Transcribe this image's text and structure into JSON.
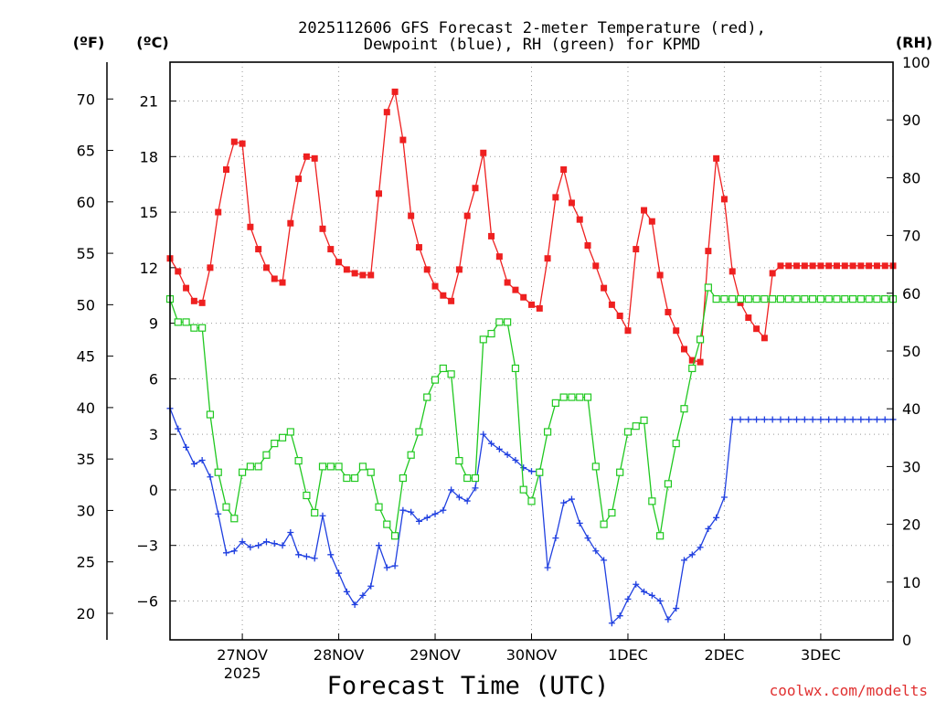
{
  "chart_data": {
    "type": "line",
    "title_line1": "2025112606 GFS Forecast 2-meter Temperature (red),",
    "title_line2": "Dewpoint (blue), RH (green) for KPMD",
    "xlabel": "Forecast Time (UTC)",
    "credit": "coolwx.com/modelts",
    "units": {
      "f": "(ºF)",
      "c": "(ºC)",
      "rh": "(RH)"
    },
    "colors": {
      "temperature": "#ee2020",
      "dewpoint": "#2040e0",
      "rh": "#20c820",
      "grid": "#999999",
      "credit": "#e03030"
    },
    "x_range_hours": [
      0,
      90
    ],
    "c_range": [
      -8.1,
      23.1
    ],
    "f_range": [
      17.42,
      73.58
    ],
    "rh_range": [
      0,
      100
    ],
    "c_ticks": [
      "-6",
      "-3",
      "0",
      "3",
      "6",
      "9",
      "12",
      "15",
      "18",
      "21"
    ],
    "f_ticks": [
      "20",
      "25",
      "30",
      "35",
      "40",
      "45",
      "50",
      "55",
      "60",
      "65",
      "70"
    ],
    "rh_ticks": [
      "0",
      "10",
      "20",
      "30",
      "40",
      "50",
      "60",
      "70",
      "80",
      "90",
      "100"
    ],
    "x_ticks": [
      {
        "hour": 9,
        "label": "27NOV",
        "sub": "2025"
      },
      {
        "hour": 21,
        "label": "28NOV",
        "sub": ""
      },
      {
        "hour": 33,
        "label": "29NOV",
        "sub": ""
      },
      {
        "hour": 45,
        "label": "30NOV",
        "sub": ""
      },
      {
        "hour": 57,
        "label": "1DEC",
        "sub": ""
      },
      {
        "hour": 69,
        "label": "2DEC",
        "sub": ""
      },
      {
        "hour": 81,
        "label": "3DEC",
        "sub": ""
      }
    ],
    "x_hours": [
      0,
      1,
      2,
      3,
      4,
      5,
      6,
      7,
      8,
      9,
      10,
      11,
      12,
      13,
      14,
      15,
      16,
      17,
      18,
      19,
      20,
      21,
      22,
      23,
      24,
      25,
      26,
      27,
      28,
      29,
      30,
      31,
      32,
      33,
      34,
      35,
      36,
      37,
      38,
      39,
      40,
      41,
      42,
      43,
      44,
      45,
      46,
      47,
      48,
      49,
      50,
      51,
      52,
      53,
      54,
      55,
      56,
      57,
      58,
      59,
      60,
      61,
      62,
      63,
      64,
      65,
      66,
      67,
      68,
      69,
      70,
      71,
      72,
      73,
      74,
      75,
      76,
      77,
      78,
      79,
      80,
      81,
      82,
      83,
      84,
      85,
      86,
      87,
      88,
      89,
      90
    ],
    "series": [
      {
        "name": "Temperature (°C)",
        "color": "#ee2020",
        "marker": "square-filled",
        "values": [
          12.5,
          11.8,
          10.9,
          10.2,
          10.1,
          12.0,
          15.0,
          17.3,
          18.8,
          18.7,
          14.2,
          13.0,
          12.0,
          11.4,
          11.2,
          14.4,
          16.8,
          18.0,
          17.9,
          14.1,
          13.0,
          12.3,
          11.9,
          11.7,
          11.6,
          11.6,
          16.0,
          20.4,
          21.5,
          18.9,
          14.8,
          13.1,
          11.9,
          11.0,
          10.5,
          10.2,
          11.9,
          14.8,
          16.3,
          18.2,
          13.7,
          12.6,
          11.2,
          10.8,
          10.4,
          10.0,
          9.8,
          12.5,
          15.8,
          17.3,
          15.5,
          14.6,
          13.2,
          12.1,
          10.9,
          10.0,
          9.4,
          8.6,
          13.0,
          15.1,
          14.5,
          11.6,
          9.6,
          8.6,
          7.6,
          7.0,
          6.9,
          12.9,
          17.9,
          15.7,
          11.8,
          10.1,
          9.3,
          8.7,
          8.2,
          11.7,
          12.1,
          12.1,
          12.1,
          12.1,
          12.1,
          12.1,
          12.1,
          12.1,
          12.1,
          12.1,
          12.1,
          12.1,
          12.1,
          12.1,
          12.1
        ]
      },
      {
        "name": "Dewpoint (°C)",
        "color": "#2040e0",
        "marker": "plus",
        "values": [
          4.4,
          3.3,
          2.3,
          1.4,
          1.6,
          0.7,
          -1.3,
          -3.4,
          -3.3,
          -2.8,
          -3.1,
          -3.0,
          -2.8,
          -2.9,
          -3.0,
          -2.3,
          -3.5,
          -3.6,
          -3.7,
          -1.4,
          -3.5,
          -4.5,
          -5.5,
          -6.2,
          -5.7,
          -5.2,
          -3.0,
          -4.2,
          -4.1,
          -1.1,
          -1.2,
          -1.7,
          -1.5,
          -1.3,
          -1.1,
          0.0,
          -0.4,
          -0.6,
          0.1,
          3.0,
          2.5,
          2.2,
          1.9,
          1.6,
          1.2,
          1.0,
          1.0,
          -4.2,
          -2.6,
          -0.7,
          -0.5,
          -1.8,
          -2.6,
          -3.3,
          -3.8,
          -7.2,
          -6.8,
          -5.9,
          -5.1,
          -5.5,
          -5.7,
          -6.0,
          -7.0,
          -6.4,
          -3.8,
          -3.5,
          -3.1,
          -2.1,
          -1.5,
          -0.4,
          3.8,
          3.8,
          3.8,
          3.8,
          3.8,
          3.8,
          3.8,
          3.8,
          3.8,
          3.8,
          3.8,
          3.8,
          3.8,
          3.8,
          3.8,
          3.8,
          3.8,
          3.8,
          3.8,
          3.8,
          3.8
        ]
      },
      {
        "name": "RH (%)",
        "color": "#20c820",
        "marker": "square-open",
        "values": [
          59,
          55,
          55,
          54,
          54,
          39,
          29,
          23,
          21,
          29,
          30,
          30,
          32,
          34,
          35,
          36,
          31,
          25,
          22,
          30,
          30,
          30,
          28,
          28,
          30,
          29,
          23,
          20,
          18,
          28,
          32,
          36,
          42,
          45,
          47,
          46,
          31,
          28,
          28,
          52,
          53,
          55,
          55,
          47,
          26,
          24,
          29,
          36,
          41,
          42,
          42,
          42,
          42,
          30,
          20,
          22,
          29,
          36,
          37,
          38,
          24,
          18,
          27,
          34,
          40,
          47,
          52,
          61,
          59,
          59,
          59,
          59,
          59,
          59,
          59,
          59,
          59,
          59,
          59,
          59,
          59,
          59,
          59,
          59,
          59,
          59,
          59,
          59,
          59,
          59,
          59
        ]
      }
    ]
  }
}
